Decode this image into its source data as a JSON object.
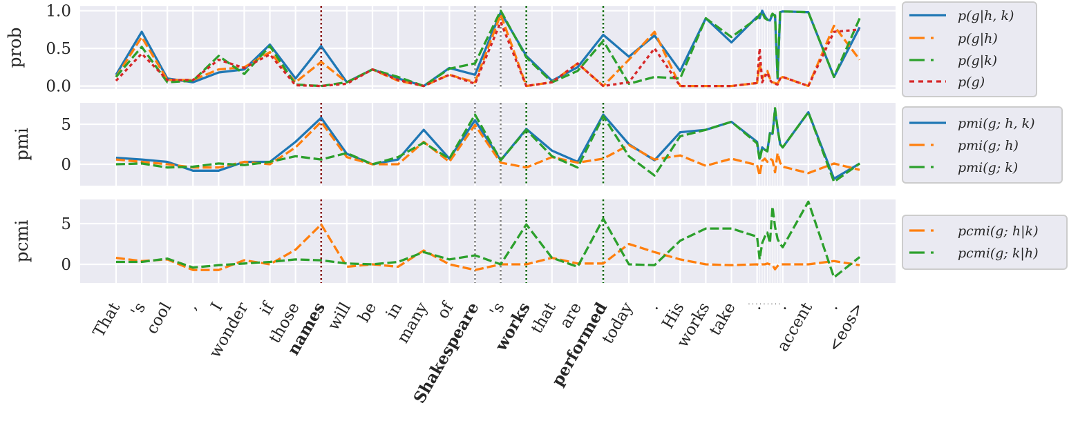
{
  "chart_data": {
    "type": "line",
    "xlim": [
      -1.4,
      30.4
    ],
    "x": [
      0,
      1,
      2,
      3,
      4,
      5,
      6,
      7,
      8,
      9,
      10,
      11,
      12,
      13,
      14,
      15,
      16,
      17,
      18,
      19,
      20,
      21,
      22,
      23,
      24,
      25,
      25.1,
      25.2,
      25.3,
      25.4,
      25.5,
      25.6,
      25.7,
      25.8,
      25.9,
      26,
      27,
      28,
      29
    ],
    "xtick_labels": [
      "That",
      "'s",
      "cool",
      ",",
      "I",
      "wonder",
      "if",
      "those",
      "names",
      "will",
      "be",
      "in",
      "many",
      "of",
      "Shakespeare",
      "'s",
      "works",
      "that",
      "are",
      "performed",
      "today",
      ".",
      "His",
      "works",
      "take",
      ".",
      ".",
      ".",
      ".",
      ".",
      ".",
      ".",
      ".",
      ".",
      ".",
      ".",
      "accent",
      ".",
      "<eos>"
    ],
    "bold_ticks": [
      8,
      14,
      16,
      19
    ],
    "markers": [
      {
        "x": 8,
        "color": "#800000"
      },
      {
        "x": 14,
        "color": "#808080"
      },
      {
        "x": 15,
        "color": "#808080"
      },
      {
        "x": 16,
        "color": "#006400"
      },
      {
        "x": 19,
        "color": "#006400"
      }
    ],
    "panels": [
      {
        "ylabel": "prob",
        "ylim": [
          -0.04,
          1.06
        ],
        "yticks": [
          0,
          0.5,
          1.0
        ],
        "ytick_labels": [
          "0.0",
          "0.5",
          "1.0"
        ],
        "legend_position": "right",
        "series": [
          {
            "name": "p(g|h, k)",
            "color": "#1f77b4",
            "style": "solid",
            "values": [
              0.15,
              0.72,
              0.1,
              0.05,
              0.18,
              0.22,
              0.55,
              0.1,
              0.53,
              0.05,
              0.22,
              0.1,
              0.0,
              0.24,
              0.15,
              0.98,
              0.4,
              0.07,
              0.25,
              0.68,
              0.39,
              0.67,
              0.2,
              0.9,
              0.58,
              0.92,
              0.9,
              1.0,
              0.93,
              0.88,
              0.87,
              0.95,
              0.94,
              0.1,
              0.98,
              0.99,
              0.98,
              0.12,
              0.78
            ]
          },
          {
            "name": "p(g|h)",
            "color": "#ff7f0e",
            "style": "dashed",
            "values": [
              0.12,
              0.65,
              0.08,
              0.08,
              0.22,
              0.25,
              0.45,
              0.05,
              0.32,
              0.05,
              0.22,
              0.07,
              0.0,
              0.15,
              0.05,
              0.95,
              0.0,
              0.05,
              0.3,
              0.0,
              0.35,
              0.72,
              0.0,
              0.0,
              0.0,
              0.04,
              0.3,
              0.1,
              0.15,
              0.2,
              0.1,
              0.05,
              0.04,
              0.03,
              0.1,
              0.12,
              0.0,
              0.8,
              0.35
            ]
          },
          {
            "name": "p(g|k)",
            "color": "#2ca02c",
            "style": "dashed",
            "values": [
              0.12,
              0.52,
              0.05,
              0.07,
              0.4,
              0.16,
              0.53,
              0.02,
              0.0,
              0.05,
              0.22,
              0.12,
              0.0,
              0.23,
              0.3,
              1.0,
              0.38,
              0.05,
              0.2,
              0.6,
              0.03,
              0.12,
              0.1,
              0.9,
              0.65,
              0.9,
              0.95,
              0.98,
              0.9,
              0.88,
              0.9,
              0.96,
              0.93,
              0.12,
              0.98,
              0.99,
              0.98,
              0.12,
              0.9
            ]
          },
          {
            "name": "p(g)",
            "color": "#d62728",
            "style": "dotted",
            "values": [
              0.07,
              0.43,
              0.08,
              0.08,
              0.35,
              0.24,
              0.42,
              0.01,
              0.0,
              0.03,
              0.22,
              0.08,
              0.0,
              0.15,
              0.03,
              0.85,
              0.0,
              0.05,
              0.3,
              0.0,
              0.05,
              0.5,
              0.0,
              0.0,
              0.0,
              0.04,
              0.5,
              0.05,
              0.12,
              0.18,
              0.08,
              0.04,
              0.03,
              0.02,
              0.1,
              0.12,
              0.0,
              0.72,
              0.75
            ]
          }
        ]
      },
      {
        "ylabel": "pmi",
        "ylim": [
          -2.67,
          7.67
        ],
        "yticks": [
          0,
          5
        ],
        "ytick_labels": [
          "0",
          "5"
        ],
        "legend_position": "right",
        "series": [
          {
            "name": "pmi(g; h, k)",
            "color": "#1f77b4",
            "style": "solid",
            "values": [
              0.8,
              0.6,
              0.3,
              -0.8,
              -0.8,
              0.3,
              0.3,
              2.8,
              5.8,
              1.3,
              0,
              0.6,
              4.3,
              0.7,
              5.5,
              0.5,
              4.4,
              1.7,
              0.3,
              6.2,
              2.5,
              0.5,
              4.0,
              4.3,
              5.3,
              2.8,
              0.7,
              2.1,
              1.8,
              1.7,
              3.9,
              3.8,
              6.8,
              4.5,
              2.5,
              2.1,
              6.5,
              -1.8,
              0.1
            ]
          },
          {
            "name": "pmi(g; h)",
            "color": "#ff7f0e",
            "style": "dashed",
            "values": [
              0.6,
              0.3,
              0,
              -0.4,
              -0.4,
              0.3,
              0,
              2.1,
              5.3,
              0.9,
              0,
              0,
              2.8,
              0.3,
              4.9,
              0.2,
              -0.4,
              0.9,
              0.2,
              0.7,
              2.4,
              0.6,
              1.1,
              -0.2,
              0.7,
              -0.1,
              -1.4,
              0.4,
              0.7,
              0.3,
              0.7,
              0.5,
              -1.0,
              1.4,
              0.2,
              -0.3,
              -1.1,
              0.1,
              -0.7
            ]
          },
          {
            "name": "pmi(g; k)",
            "color": "#2ca02c",
            "style": "dashed",
            "values": [
              0,
              0.1,
              -0.4,
              -0.3,
              0.1,
              -0.1,
              0.3,
              1.0,
              0.6,
              1.4,
              0,
              0.9,
              2.7,
              0.7,
              6.2,
              0.5,
              4.3,
              1.0,
              -0.4,
              6.0,
              1.0,
              -1.4,
              3.5,
              4.3,
              5.3,
              2.6,
              0.5,
              2.0,
              1.8,
              1.6,
              3.8,
              3.7,
              7.0,
              4.5,
              2.5,
              2.1,
              6.5,
              -2.2,
              0.1
            ]
          }
        ]
      },
      {
        "ylabel": "pcmi",
        "ylim": [
          -2.29,
          7.97
        ],
        "yticks": [
          0,
          5
        ],
        "ytick_labels": [
          "0",
          "5"
        ],
        "legend_position": "right",
        "series": [
          {
            "name": "pcmi(g; h|k)",
            "color": "#ff7f0e",
            "style": "dashed",
            "values": [
              0.8,
              0.4,
              0.6,
              -0.7,
              -0.7,
              0.5,
              0,
              1.8,
              4.9,
              -0.3,
              0,
              -0.3,
              1.7,
              0,
              -0.7,
              0,
              0,
              0.8,
              0.1,
              0.1,
              2.5,
              1.5,
              0.6,
              0,
              -0.1,
              0,
              -0.1,
              0,
              0,
              0.1,
              0,
              -0.1,
              -0.6,
              -0.2,
              0,
              0,
              0,
              0.4,
              -0.1
            ]
          },
          {
            "name": "pcmi(g; k|h)",
            "color": "#2ca02c",
            "style": "dashed",
            "values": [
              0.3,
              0.3,
              0.7,
              -0.4,
              -0.1,
              0.1,
              0.3,
              0.6,
              0.5,
              0.1,
              0,
              0.3,
              1.5,
              0.6,
              1.1,
              0,
              4.9,
              0.8,
              -0.3,
              5.6,
              0,
              -0.1,
              2.9,
              4.4,
              4.4,
              3.4,
              0.6,
              2.6,
              3.4,
              3.9,
              2.6,
              7.1,
              4.6,
              3.1,
              2.5,
              2.1,
              7.7,
              -1.6,
              0.9
            ]
          }
        ]
      }
    ]
  }
}
